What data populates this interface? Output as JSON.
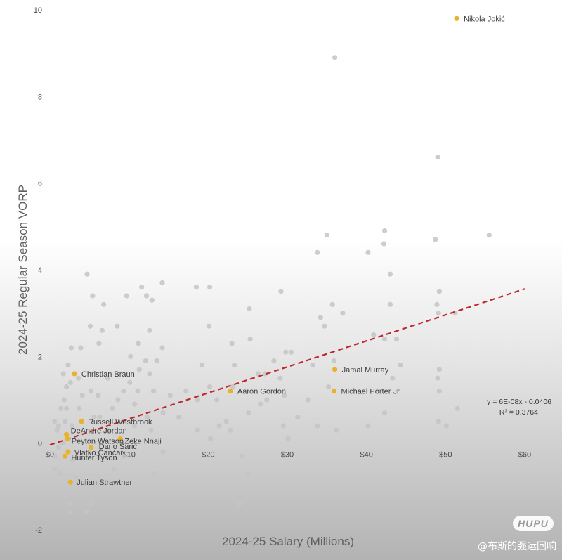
{
  "chart_data": {
    "type": "scatter",
    "title": "",
    "xlabel": "2024-25 Salary  (Millions)",
    "ylabel": "2024-25 Regular Season VORP",
    "xlim": [
      0,
      60
    ],
    "ylim": [
      -2,
      10
    ],
    "x_ticks": [
      0,
      10,
      20,
      30,
      40,
      50,
      60
    ],
    "x_tick_labels": [
      "$0",
      "$10",
      "$20",
      "$30",
      "$40",
      "$50",
      "$60"
    ],
    "y_ticks": [
      -2,
      0,
      2,
      4,
      6,
      8,
      10
    ],
    "y_tick_labels": [
      "-2",
      "0",
      "2",
      "4",
      "6",
      "8",
      "10"
    ],
    "grid": false,
    "colors": {
      "league": "#c4c4c4",
      "highlight": "#e8b32a",
      "trendline": "#c0272d"
    },
    "highlighted": [
      {
        "name": "Nikola Jokić",
        "x": 51.4,
        "y": 9.8
      },
      {
        "name": "Jamal Murray",
        "x": 36.0,
        "y": 1.7
      },
      {
        "name": "Michael Porter Jr.",
        "x": 35.9,
        "y": 1.2
      },
      {
        "name": "Aaron Gordon",
        "x": 22.8,
        "y": 1.2
      },
      {
        "name": "Christian Braun",
        "x": 3.1,
        "y": 1.6
      },
      {
        "name": "Russell Westbrook",
        "x": 4.0,
        "y": 0.5
      },
      {
        "name": "DeAndre Jordan",
        "x": 2.1,
        "y": 0.2
      },
      {
        "name": "Peyton Watson",
        "x": 2.2,
        "y": 0.1
      },
      {
        "name": "Zeke Nnaji",
        "x": 8.9,
        "y": 0.1
      },
      {
        "name": "Dario Šarić",
        "x": 5.2,
        "y": -0.1
      },
      {
        "name": "Vlatko Čančar",
        "x": 2.3,
        "y": -0.2
      },
      {
        "name": "Hunter Tyson",
        "x": 1.9,
        "y": -0.3
      },
      {
        "name": "Julian Strawther",
        "x": 2.6,
        "y": -0.9
      }
    ],
    "highlighted_label_text": [
      "Nikola Jokić",
      "Jamal Murray",
      "Michael Porter Jr.",
      "Aaron Gordon",
      "Christian Braun",
      "Russell Westbrook",
      "DeAndre Jordan",
      "Peyton Watson",
      "Zeke Nnaji",
      "Dario Šarić",
      "Vlatko Čančar",
      "Hunter Tyson",
      "Julian Strawther"
    ],
    "league_points": [
      [
        36,
        8.9
      ],
      [
        49,
        6.6
      ],
      [
        55.5,
        4.8
      ],
      [
        48.7,
        4.7
      ],
      [
        35,
        4.8
      ],
      [
        42.3,
        4.9
      ],
      [
        42.2,
        4.6
      ],
      [
        40.2,
        4.4
      ],
      [
        33.8,
        4.4
      ],
      [
        43,
        3.9
      ],
      [
        43,
        3.2
      ],
      [
        35.7,
        3.2
      ],
      [
        37,
        3.0
      ],
      [
        34.2,
        2.9
      ],
      [
        34.7,
        2.7
      ],
      [
        29.2,
        3.5
      ],
      [
        49.2,
        3.5
      ],
      [
        49.1,
        3.0
      ],
      [
        51.2,
        3.0
      ],
      [
        48.9,
        3.2
      ],
      [
        43.8,
        2.4
      ],
      [
        42.3,
        2.4
      ],
      [
        40.9,
        2.5
      ],
      [
        44.3,
        1.8
      ],
      [
        43.3,
        1.5
      ],
      [
        49.2,
        1.7
      ],
      [
        49.0,
        1.5
      ],
      [
        49.2,
        1.2
      ],
      [
        51.5,
        0.8
      ],
      [
        50.1,
        0.4
      ],
      [
        49.1,
        0.5
      ],
      [
        42.3,
        0.7
      ],
      [
        40.2,
        0.4
      ],
      [
        36.2,
        0.3
      ],
      [
        35.2,
        1.3
      ],
      [
        35.9,
        1.9
      ],
      [
        33.2,
        1.8
      ],
      [
        32.6,
        1.0
      ],
      [
        30.5,
        2.1
      ],
      [
        29.8,
        2.1
      ],
      [
        29.1,
        1.5
      ],
      [
        29.6,
        1.1
      ],
      [
        29.5,
        0.4
      ],
      [
        30.1,
        0.1
      ],
      [
        31.3,
        0.6
      ],
      [
        33.8,
        0.4
      ],
      [
        25.2,
        3.1
      ],
      [
        25.3,
        2.4
      ],
      [
        23.0,
        2.3
      ],
      [
        23.3,
        1.8
      ],
      [
        23.1,
        1.3
      ],
      [
        22.8,
        0.3
      ],
      [
        22.3,
        0.5
      ],
      [
        25.1,
        0.7
      ],
      [
        26.6,
        0.9
      ],
      [
        27.4,
        1.0
      ],
      [
        26.3,
        1.6
      ],
      [
        27.2,
        1.6
      ],
      [
        28.3,
        1.9
      ],
      [
        24.3,
        -0.3
      ],
      [
        25.1,
        -0.7
      ],
      [
        24.0,
        -1.4
      ],
      [
        18.5,
        3.6
      ],
      [
        20.2,
        3.6
      ],
      [
        20.1,
        2.7
      ],
      [
        19.2,
        1.8
      ],
      [
        20.2,
        1.3
      ],
      [
        21.1,
        1.0
      ],
      [
        21.4,
        0.4
      ],
      [
        20.3,
        0.1
      ],
      [
        18.6,
        0.3
      ],
      [
        17.2,
        1.2
      ],
      [
        18.6,
        1.0
      ],
      [
        16.3,
        0.6
      ],
      [
        15.2,
        1.1
      ],
      [
        14.2,
        2.2
      ],
      [
        13.5,
        1.9
      ],
      [
        13.1,
        1.2
      ],
      [
        14.3,
        0.7
      ],
      [
        12.8,
        0.3
      ],
      [
        14.3,
        -0.2
      ],
      [
        13.1,
        -0.7
      ],
      [
        12.8,
        -1.1
      ],
      [
        11.6,
        3.6
      ],
      [
        12.2,
        3.4
      ],
      [
        12.9,
        3.3
      ],
      [
        14.2,
        3.7
      ],
      [
        12.6,
        2.6
      ],
      [
        11.2,
        2.3
      ],
      [
        10.2,
        2.0
      ],
      [
        12.1,
        1.9
      ],
      [
        11.3,
        1.7
      ],
      [
        10.1,
        1.4
      ],
      [
        12.6,
        1.6
      ],
      [
        11.1,
        1.2
      ],
      [
        10.7,
        0.9
      ],
      [
        12.3,
        0.6
      ],
      [
        10.7,
        0.4
      ],
      [
        9.7,
        3.4
      ],
      [
        6.8,
        3.2
      ],
      [
        5.4,
        3.4
      ],
      [
        4.7,
        3.9
      ],
      [
        6.6,
        2.6
      ],
      [
        8.5,
        2.7
      ],
      [
        5.1,
        2.7
      ],
      [
        6.2,
        2.3
      ],
      [
        3.9,
        2.2
      ],
      [
        2.7,
        2.2
      ],
      [
        2.3,
        1.8
      ],
      [
        2.6,
        1.4
      ],
      [
        3.6,
        1.5
      ],
      [
        4.1,
        1.1
      ],
      [
        5.2,
        1.2
      ],
      [
        6.1,
        1.1
      ],
      [
        7.3,
        1.5
      ],
      [
        8.6,
        1.0
      ],
      [
        9.3,
        1.2
      ],
      [
        7.9,
        0.8
      ],
      [
        6.3,
        0.6
      ],
      [
        1.8,
        1.0
      ],
      [
        1.4,
        0.8
      ],
      [
        1.9,
        0.5
      ],
      [
        2.8,
        0.4
      ],
      [
        0.9,
        0.3
      ],
      [
        0.6,
        0.5
      ],
      [
        1.1,
        -0.1
      ],
      [
        0.7,
        -0.3
      ],
      [
        0.6,
        -0.6
      ],
      [
        1.3,
        -0.7
      ],
      [
        2.1,
        -1.1
      ],
      [
        2.5,
        -1.4
      ],
      [
        2.6,
        -1.6
      ],
      [
        4.1,
        -1.2
      ],
      [
        5.2,
        -1.4
      ],
      [
        6.2,
        -1.0
      ],
      [
        8.1,
        -0.6
      ],
      [
        9.3,
        -0.3
      ],
      [
        7.3,
        -0.9
      ],
      [
        4.6,
        -1.6
      ],
      [
        3.3,
        -0.8
      ],
      [
        2.9,
        -0.4
      ],
      [
        7.3,
        0.3
      ],
      [
        5.6,
        0.6
      ],
      [
        3.7,
        0.8
      ],
      [
        2.1,
        1.3
      ],
      [
        1.7,
        1.6
      ],
      [
        2.1,
        0.8
      ],
      [
        1.1,
        0.4
      ],
      [
        1.6,
        0.0
      ]
    ],
    "trendline": {
      "equation": "y = 6E-08x - 0.0406",
      "r_squared": "R² = 0.3764",
      "slope_per_million": 0.06,
      "intercept": -0.0406,
      "x_range": [
        0,
        60
      ]
    }
  },
  "watermark": {
    "logo": "HUPU",
    "text": "@布斯的强运回响"
  }
}
